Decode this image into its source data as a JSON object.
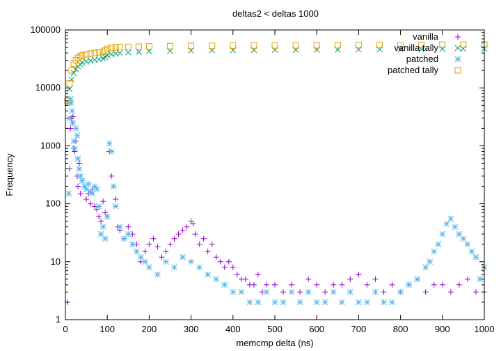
{
  "chart_data": {
    "type": "scatter",
    "title": "deltas2 < deltas 1000",
    "xlabel": "memcmp delta (ns)",
    "ylabel": "Frequency",
    "xlim": [
      0,
      1000
    ],
    "ylim": [
      1,
      100000
    ],
    "y_scale": "log",
    "grid": false,
    "legend_position": "top-right",
    "x_ticks": [
      0,
      100,
      200,
      300,
      400,
      500,
      600,
      700,
      800,
      900,
      1000
    ],
    "y_ticks": [
      1,
      10,
      100,
      1000,
      10000,
      100000
    ],
    "x_tick_labels": [
      "0",
      "100",
      "200",
      "300",
      "400",
      "500",
      "600",
      "700",
      "800",
      "900",
      "1000"
    ],
    "y_tick_labels": [
      "1",
      "10",
      "100",
      "1000",
      "10000",
      "100000"
    ],
    "series": [
      {
        "name": "vanilla",
        "marker": "plus",
        "color": "#9400d3",
        "x": [
          5,
          10,
          12,
          14,
          16,
          18,
          20,
          22,
          25,
          28,
          30,
          33,
          36,
          40,
          45,
          50,
          55,
          60,
          65,
          70,
          75,
          80,
          85,
          90,
          95,
          100,
          105,
          110,
          115,
          120,
          125,
          130,
          140,
          150,
          160,
          170,
          180,
          190,
          200,
          210,
          220,
          230,
          240,
          250,
          260,
          270,
          280,
          290,
          300,
          305,
          310,
          320,
          330,
          340,
          350,
          360,
          370,
          380,
          390,
          400,
          410,
          420,
          430,
          440,
          450,
          460,
          470,
          480,
          500,
          520,
          540,
          560,
          580,
          600,
          620,
          640,
          660,
          680,
          700,
          720,
          740,
          760,
          780,
          800,
          820,
          840,
          860,
          880,
          900,
          920,
          940,
          960,
          980,
          1000
        ],
        "y": [
          2,
          400,
          2000,
          3000,
          2500,
          3200,
          900,
          800,
          1200,
          300,
          200,
          500,
          150,
          250,
          200,
          120,
          150,
          100,
          180,
          90,
          80,
          60,
          50,
          110,
          70,
          60,
          800,
          300,
          200,
          120,
          40,
          35,
          25,
          40,
          30,
          20,
          10,
          15,
          20,
          25,
          18,
          12,
          15,
          20,
          25,
          30,
          35,
          40,
          50,
          45,
          30,
          20,
          25,
          15,
          20,
          12,
          10,
          8,
          10,
          8,
          6,
          5,
          5,
          4,
          4,
          6,
          3,
          4,
          4,
          3,
          4,
          3,
          5,
          4,
          3,
          4,
          4,
          5,
          6,
          4,
          5,
          3,
          4,
          3,
          4,
          5,
          3,
          4,
          4,
          3,
          4,
          5,
          3,
          3
        ]
      },
      {
        "name": "vanilla tally",
        "marker": "cross",
        "color": "#009e73",
        "x": [
          5,
          10,
          15,
          20,
          25,
          30,
          35,
          40,
          50,
          60,
          70,
          80,
          90,
          95,
          100,
          110,
          120,
          130,
          150,
          175,
          200,
          250,
          300,
          350,
          400,
          450,
          500,
          550,
          600,
          650,
          700,
          750,
          800,
          850,
          900,
          950,
          1000
        ],
        "y": [
          5500,
          9500,
          14000,
          18000,
          21000,
          23500,
          25500,
          27000,
          28500,
          29500,
          30500,
          31000,
          32500,
          34000,
          36000,
          38000,
          39000,
          40000,
          41000,
          42000,
          42800,
          43500,
          44000,
          44500,
          44800,
          45000,
          45200,
          45400,
          45600,
          45800,
          46000,
          46200,
          46400,
          46600,
          47000,
          47300,
          47500
        ]
      },
      {
        "name": "patched",
        "marker": "star",
        "color": "#56b4e9",
        "x": [
          8,
          10,
          12,
          14,
          16,
          18,
          20,
          22,
          25,
          28,
          30,
          33,
          36,
          40,
          45,
          50,
          55,
          60,
          65,
          70,
          75,
          80,
          85,
          90,
          95,
          100,
          105,
          110,
          115,
          120,
          130,
          140,
          150,
          160,
          170,
          180,
          190,
          200,
          220,
          240,
          260,
          280,
          300,
          320,
          340,
          360,
          380,
          400,
          420,
          440,
          460,
          480,
          500,
          520,
          540,
          560,
          580,
          600,
          620,
          640,
          660,
          680,
          700,
          720,
          740,
          760,
          780,
          800,
          820,
          840,
          860,
          870,
          880,
          890,
          900,
          910,
          920,
          930,
          940,
          950,
          960,
          970,
          980,
          990,
          1000
        ],
        "y": [
          150,
          3000,
          6500,
          5500,
          4000,
          2500,
          1200,
          900,
          2000,
          1500,
          600,
          400,
          300,
          250,
          200,
          180,
          220,
          160,
          150,
          200,
          180,
          90,
          30,
          40,
          25,
          60,
          1100,
          800,
          200,
          90,
          40,
          25,
          30,
          20,
          15,
          12,
          10,
          8,
          6,
          10,
          8,
          12,
          10,
          8,
          6,
          5,
          4,
          3,
          3,
          2,
          2,
          3,
          2,
          2,
          3,
          2,
          3,
          2,
          2,
          3,
          2,
          3,
          2,
          2,
          3,
          2,
          2,
          3,
          4,
          5,
          8,
          10,
          15,
          20,
          30,
          45,
          55,
          40,
          30,
          25,
          20,
          15,
          12,
          5,
          8
        ]
      },
      {
        "name": "patched tally",
        "marker": "square",
        "color": "#e69f00",
        "x": [
          5,
          10,
          15,
          20,
          25,
          30,
          35,
          40,
          50,
          60,
          70,
          80,
          90,
          95,
          100,
          110,
          120,
          130,
          150,
          175,
          200,
          250,
          300,
          350,
          400,
          450,
          500,
          550,
          600,
          650,
          700,
          750,
          800,
          850,
          900,
          950,
          1000
        ],
        "y": [
          6000,
          12000,
          20000,
          26000,
          30000,
          33000,
          35000,
          36500,
          38000,
          39000,
          40000,
          41000,
          42000,
          44000,
          47000,
          49000,
          50000,
          50500,
          51000,
          51500,
          52000,
          52500,
          53000,
          53300,
          53600,
          53800,
          54000,
          54200,
          54400,
          54600,
          54800,
          55000,
          55200,
          55400,
          55600,
          55800,
          56000
        ]
      }
    ]
  }
}
